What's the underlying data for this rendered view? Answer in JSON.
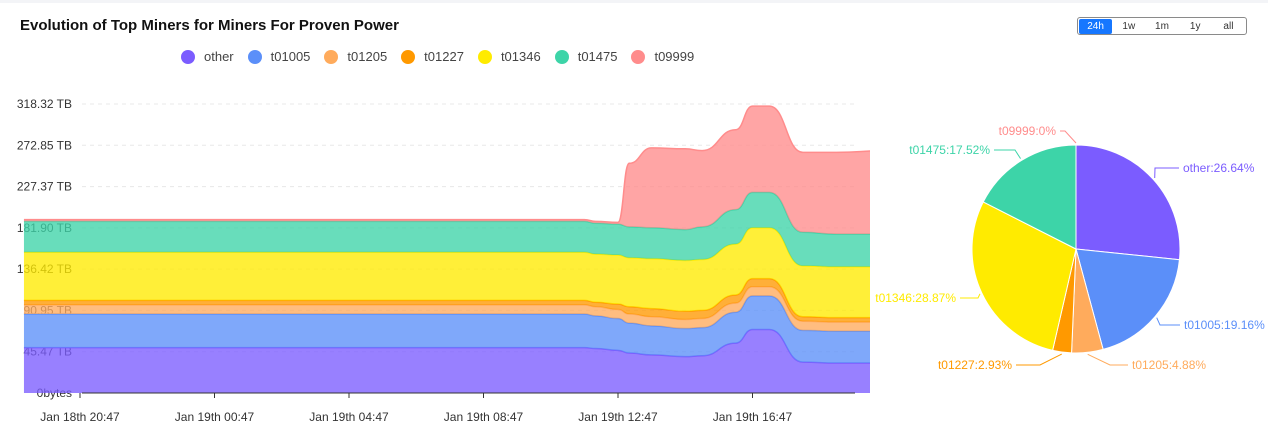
{
  "title": "Evolution of Top Miners for Miners For Proven Power",
  "range_buttons": [
    {
      "label": "24h",
      "active": true
    },
    {
      "label": "1w",
      "active": false
    },
    {
      "label": "1m",
      "active": false
    },
    {
      "label": "1y",
      "active": false
    },
    {
      "label": "all",
      "active": false
    }
  ],
  "chart_data": [
    {
      "type": "area",
      "stacked": true,
      "y_unit": "TB",
      "ylim": [
        0,
        318.32
      ],
      "y_ticks": [
        "0bytes",
        "45.47 TB",
        "90.95 TB",
        "136.42 TB",
        "181.90 TB",
        "227.37 TB",
        "272.85 TB",
        "318.32 TB"
      ],
      "y_tick_values": [
        0,
        45.47,
        90.95,
        136.42,
        181.9,
        227.37,
        272.85,
        318.32
      ],
      "x_ticks": [
        "Jan 18th 20:47",
        "Jan 19th 00:47",
        "Jan 19th 04:47",
        "Jan 19th 08:47",
        "Jan 19th 12:47",
        "Jan 19th 16:47"
      ],
      "x": [
        "2024-01-18 19:07",
        "2024-01-18 20:47",
        "2024-01-19 04:47",
        "2024-01-19 10:47",
        "2024-01-19 11:47",
        "2024-01-19 12:07",
        "2024-01-19 12:47",
        "2024-01-19 13:07",
        "2024-01-19 13:47",
        "2024-01-19 14:47",
        "2024-01-19 15:17",
        "2024-01-19 16:17",
        "2024-01-19 16:47",
        "2024-01-19 17:17",
        "2024-01-19 18:17",
        "2024-01-19 19:17",
        "2024-01-19 20:47",
        "2024-01-19 22:47"
      ],
      "grid": true,
      "legend_position": "top",
      "series": [
        {
          "name": "other",
          "color": "#7b5cff",
          "values": [
            50,
            50,
            50,
            50,
            50,
            49,
            47,
            44,
            42,
            40,
            41,
            55,
            70,
            70,
            34,
            33,
            33,
            33
          ]
        },
        {
          "name": "t01005",
          "color": "#5b8ff9",
          "values": [
            37,
            37,
            37,
            37,
            37,
            36,
            35,
            33,
            32,
            31,
            31,
            34,
            37,
            37,
            35,
            35,
            35,
            35
          ]
        },
        {
          "name": "t01205",
          "color": "#ffab5c",
          "values": [
            10,
            10,
            10,
            10,
            10,
            10,
            10,
            10,
            10,
            10,
            10,
            10,
            10,
            10,
            10,
            10,
            10,
            10
          ]
        },
        {
          "name": "t01227",
          "color": "#ff9900",
          "values": [
            5,
            5,
            5,
            5,
            5,
            5,
            6,
            8,
            9,
            9,
            9,
            9,
            9,
            9,
            5,
            5,
            5,
            5
          ]
        },
        {
          "name": "t01346",
          "color": "#ffeb00",
          "values": [
            53,
            53,
            53,
            53,
            53,
            53,
            54,
            54,
            55,
            56,
            56,
            56,
            56,
            56,
            56,
            56,
            56,
            56
          ]
        },
        {
          "name": "t01475",
          "color": "#3dd4a8",
          "values": [
            34,
            34,
            34,
            34,
            34,
            34,
            34,
            34,
            34,
            34,
            36,
            38,
            39,
            39,
            37,
            36,
            36,
            36
          ]
        },
        {
          "name": "t09999",
          "color": "#ff8c8c",
          "values": [
            2,
            2,
            2,
            2,
            2,
            2,
            2,
            70,
            88,
            89,
            84,
            88,
            95,
            95,
            88,
            90,
            92,
            92
          ]
        }
      ]
    },
    {
      "type": "pie",
      "slices": [
        {
          "name": "other",
          "label": "other:26.64%",
          "value": 26.64,
          "color": "#7b5cff"
        },
        {
          "name": "t01005",
          "label": "t01005:19.16%",
          "value": 19.16,
          "color": "#5b8ff9"
        },
        {
          "name": "t01205",
          "label": "t01205:4.88%",
          "value": 4.88,
          "color": "#ffab5c"
        },
        {
          "name": "t01227",
          "label": "t01227:2.93%",
          "value": 2.93,
          "color": "#ff9900"
        },
        {
          "name": "t01346",
          "label": "t01346:28.87%",
          "value": 28.87,
          "color": "#ffeb00"
        },
        {
          "name": "t01475",
          "label": "t01475:17.52%",
          "value": 17.52,
          "color": "#3dd4a8"
        },
        {
          "name": "t09999",
          "label": "t09999:0%",
          "value": 0,
          "color": "#ff8c8c"
        }
      ]
    }
  ]
}
